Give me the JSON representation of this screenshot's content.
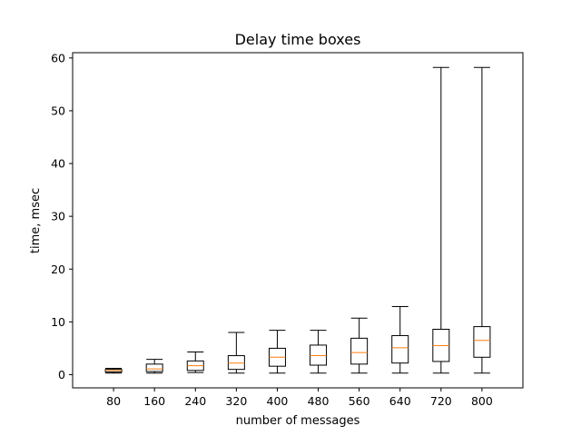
{
  "chart_data": {
    "type": "box",
    "title": "Delay time boxes",
    "xlabel": "number of messages",
    "ylabel": "time, msec",
    "ylim": [
      -2.5,
      61
    ],
    "yticks": [
      0,
      10,
      20,
      30,
      40,
      50,
      60
    ],
    "categories": [
      "80",
      "160",
      "240",
      "320",
      "400",
      "480",
      "560",
      "640",
      "720",
      "800"
    ],
    "boxes": [
      {
        "whisker_low": 0.3,
        "q1": 0.5,
        "median": 0.8,
        "q3": 1.0,
        "whisker_high": 1.2
      },
      {
        "whisker_low": 0.3,
        "q1": 0.6,
        "median": 1.1,
        "q3": 2.0,
        "whisker_high": 2.9
      },
      {
        "whisker_low": 0.4,
        "q1": 0.8,
        "median": 1.7,
        "q3": 2.6,
        "whisker_high": 4.3
      },
      {
        "whisker_low": 0.3,
        "q1": 1.0,
        "median": 2.2,
        "q3": 3.6,
        "whisker_high": 8.0
      },
      {
        "whisker_low": 0.3,
        "q1": 1.6,
        "median": 3.3,
        "q3": 5.0,
        "whisker_high": 8.4
      },
      {
        "whisker_low": 0.3,
        "q1": 1.8,
        "median": 3.6,
        "q3": 5.6,
        "whisker_high": 8.4
      },
      {
        "whisker_low": 0.3,
        "q1": 2.0,
        "median": 4.2,
        "q3": 6.9,
        "whisker_high": 10.7
      },
      {
        "whisker_low": 0.3,
        "q1": 2.2,
        "median": 5.1,
        "q3": 7.4,
        "whisker_high": 12.9
      },
      {
        "whisker_low": 0.3,
        "q1": 2.5,
        "median": 5.5,
        "q3": 8.6,
        "whisker_high": 58.2
      },
      {
        "whisker_low": 0.3,
        "q1": 3.3,
        "median": 6.5,
        "q3": 9.1,
        "whisker_high": 58.2
      }
    ],
    "colors": {
      "box": "#000000",
      "median": "#ff7f0e"
    },
    "grid": false,
    "legend": "none"
  }
}
